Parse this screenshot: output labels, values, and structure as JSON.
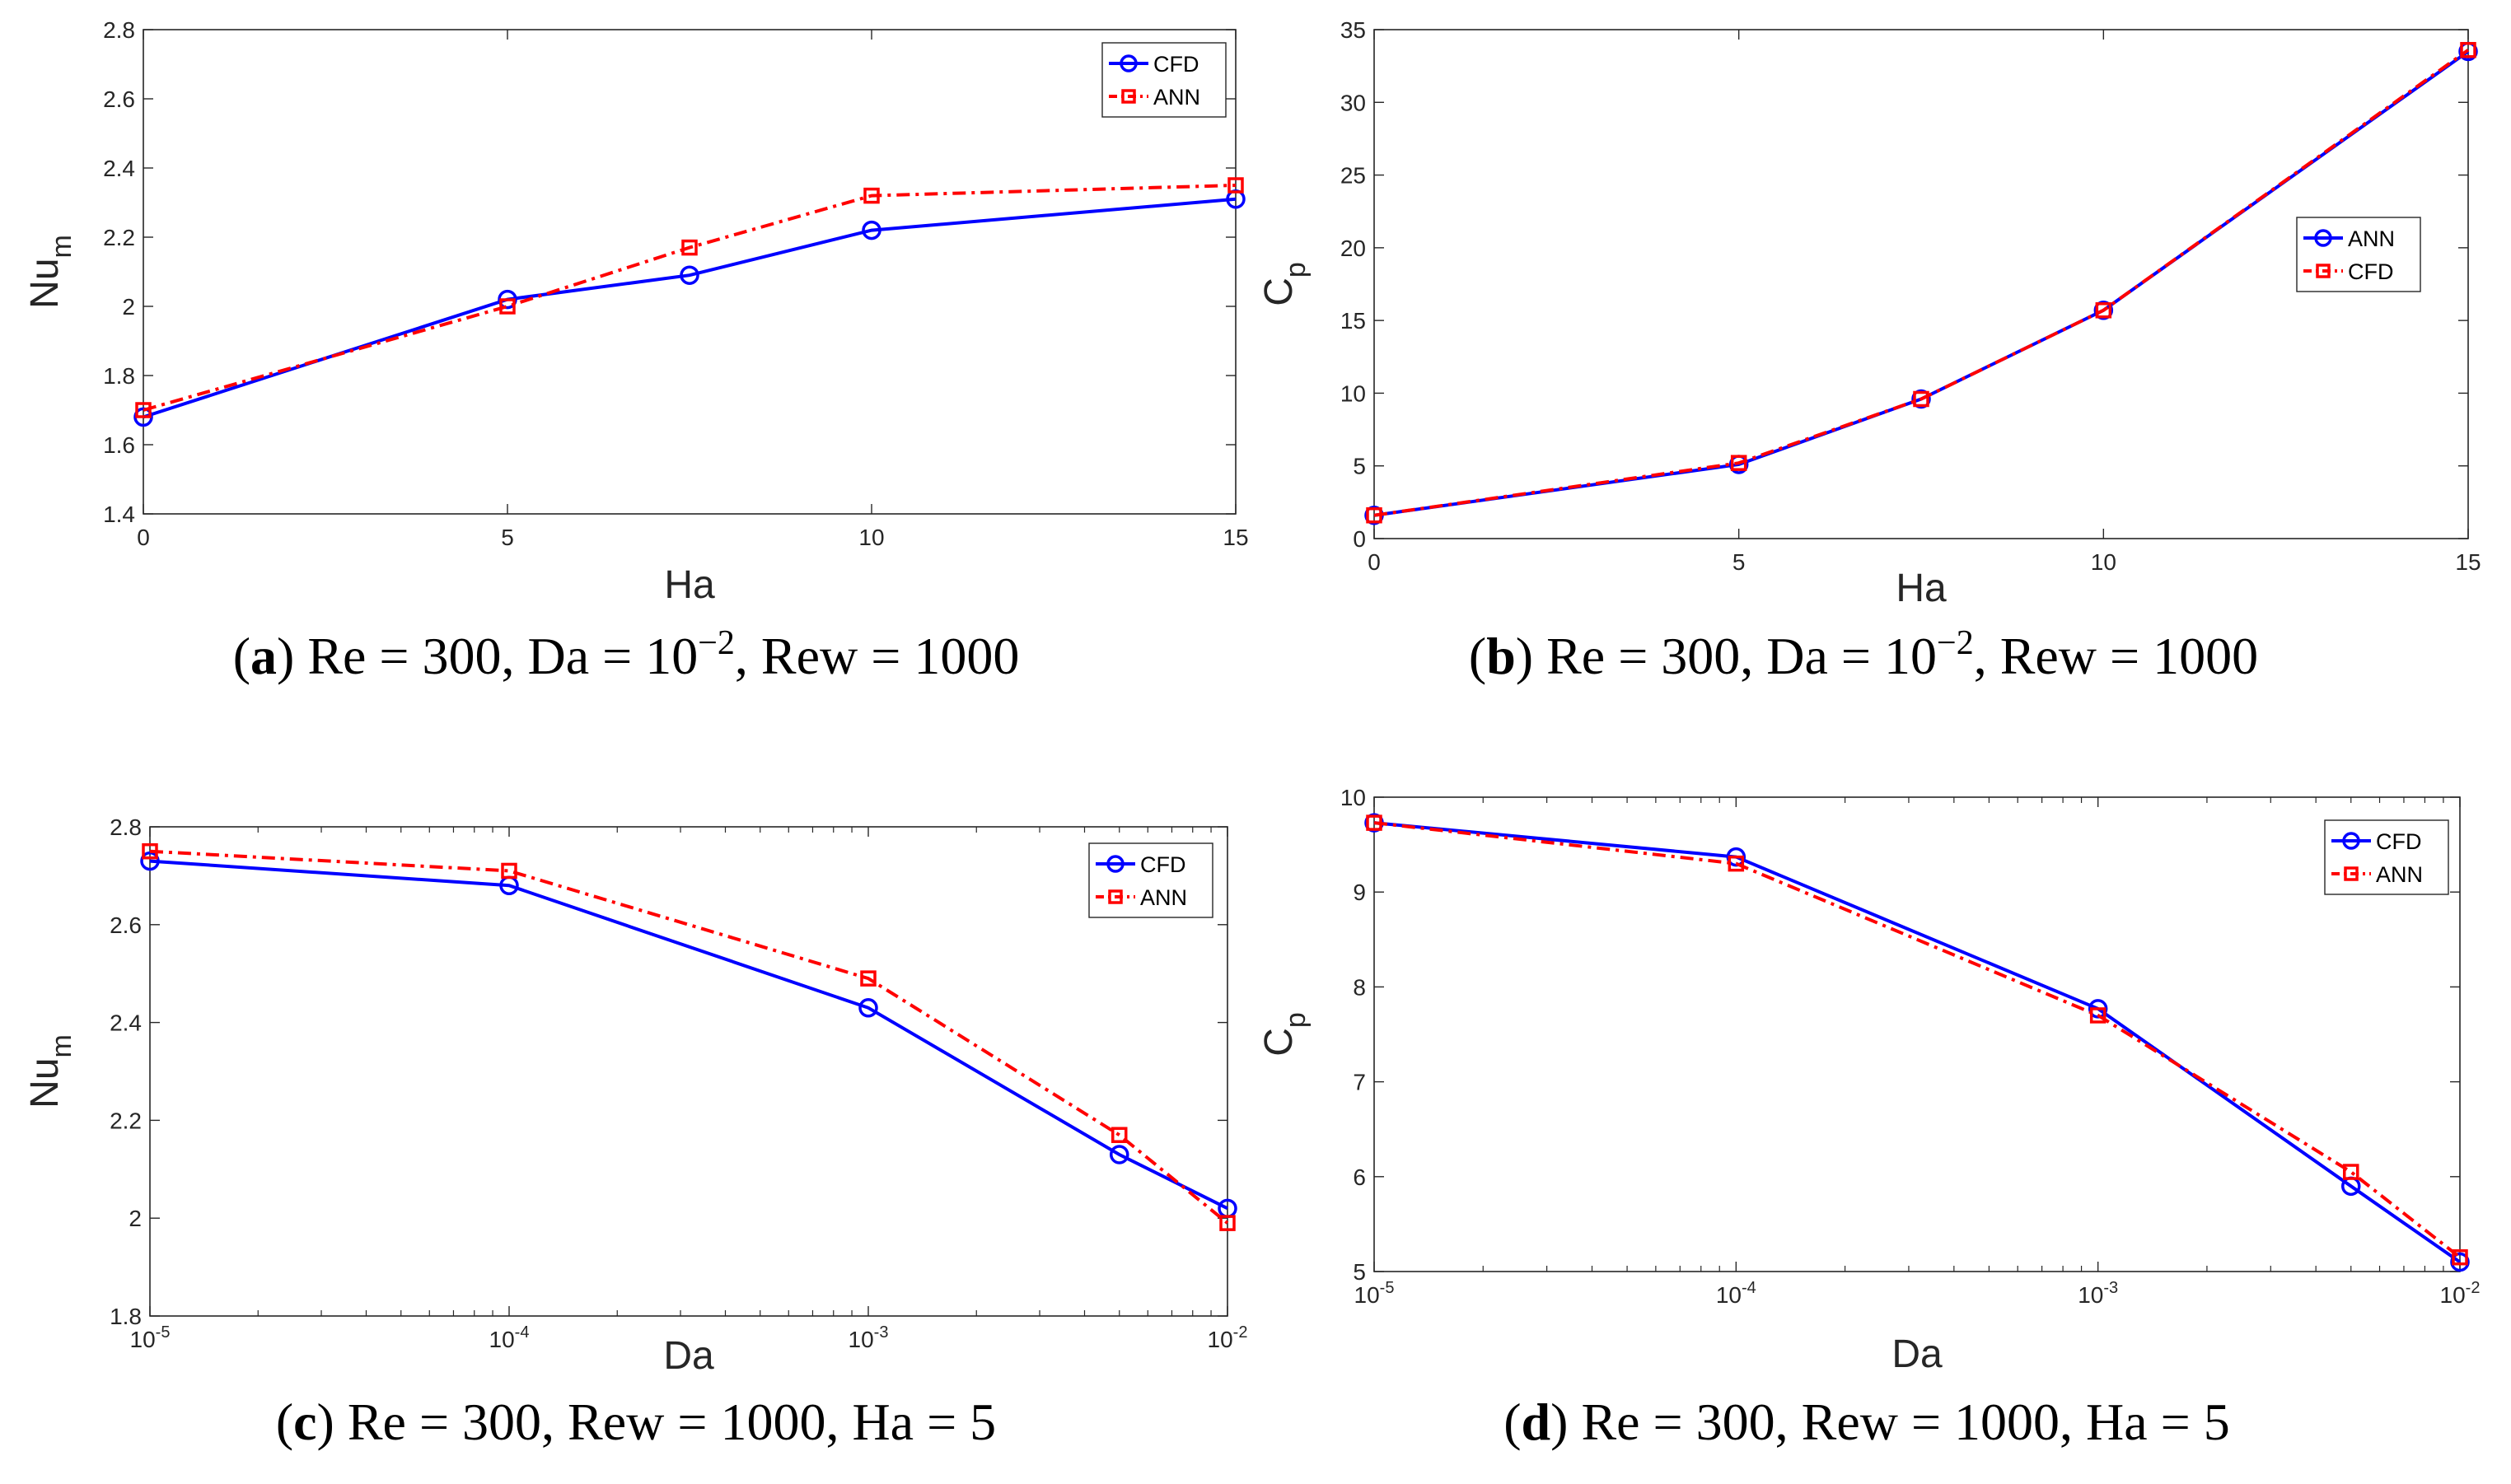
{
  "chart_data": [
    {
      "panel": "a",
      "type": "line",
      "x_scale": "linear",
      "x": [
        0,
        5,
        7.5,
        10,
        15
      ],
      "xlim": [
        0,
        15
      ],
      "ylim": [
        1.4,
        2.8
      ],
      "xticks": [
        0,
        5,
        10,
        15
      ],
      "xtick_labels": [
        "0",
        "5",
        "10",
        "15"
      ],
      "yticks": [
        1.4,
        1.6,
        1.8,
        2,
        2.2,
        2.4,
        2.6,
        2.8
      ],
      "ytick_labels": [
        "1.4",
        "1.6",
        "1.8",
        "2",
        "2.2",
        "2.4",
        "2.6",
        "2.8"
      ],
      "xlabel": "Ha",
      "ylabel": "Nu",
      "ylabel_sub": "m",
      "legend_position": "top-right",
      "series": [
        {
          "name": "CFD",
          "color": "#0000ff",
          "style": "solid",
          "marker": "circle",
          "values": [
            1.68,
            2.02,
            2.09,
            2.22,
            2.31
          ]
        },
        {
          "name": "ANN",
          "color": "#ff0000",
          "style": "dashdot",
          "marker": "square",
          "values": [
            1.7,
            2.0,
            2.17,
            2.32,
            2.35
          ]
        }
      ],
      "caption": {
        "label": "(a)",
        "prefix": " Re = 300, Da = 10",
        "sup": "−2",
        "suffix": ", Rew = 1000"
      }
    },
    {
      "panel": "b",
      "type": "line",
      "x_scale": "linear",
      "x": [
        0,
        5,
        7.5,
        10,
        15
      ],
      "xlim": [
        0,
        15
      ],
      "ylim": [
        0,
        35
      ],
      "xticks": [
        0,
        5,
        10,
        15
      ],
      "xtick_labels": [
        "0",
        "5",
        "10",
        "15"
      ],
      "yticks": [
        0,
        5,
        10,
        15,
        20,
        25,
        30,
        35
      ],
      "ytick_labels": [
        "0",
        "5",
        "10",
        "15",
        "20",
        "25",
        "30",
        "35"
      ],
      "xlabel": "Ha",
      "ylabel": "C",
      "ylabel_sub": "p",
      "legend_position": "center-right",
      "series": [
        {
          "name": "ANN",
          "color": "#0000ff",
          "style": "solid",
          "marker": "circle",
          "values": [
            1.6,
            5.1,
            9.6,
            15.7,
            33.5
          ]
        },
        {
          "name": "CFD",
          "color": "#ff0000",
          "style": "dashdot",
          "marker": "square",
          "values": [
            1.6,
            5.2,
            9.6,
            15.7,
            33.6
          ]
        }
      ],
      "caption": {
        "label": "(b)",
        "prefix": " Re = 300, Da = 10",
        "sup": "−2",
        "suffix": ", Rew = 1000"
      }
    },
    {
      "panel": "c",
      "type": "line",
      "x_scale": "log",
      "x": [
        1e-05,
        0.0001,
        0.001,
        0.005,
        0.01
      ],
      "xlim": [
        1e-05,
        0.01
      ],
      "ylim": [
        1.8,
        2.8
      ],
      "xticks": [
        1e-05,
        0.0001,
        0.001,
        0.01
      ],
      "xtick_labels": [
        "-5",
        "-4",
        "-3",
        "-2"
      ],
      "xtick_base": "10",
      "yticks": [
        1.8,
        2,
        2.2,
        2.4,
        2.6,
        2.8
      ],
      "ytick_labels": [
        "1.8",
        "2",
        "2.2",
        "2.4",
        "2.6",
        "2.8"
      ],
      "xlabel": "Da",
      "ylabel": "Nu",
      "ylabel_sub": "m",
      "legend_position": "top-right",
      "series": [
        {
          "name": "CFD",
          "color": "#0000ff",
          "style": "solid",
          "marker": "circle",
          "values": [
            2.73,
            2.68,
            2.43,
            2.13,
            2.02
          ]
        },
        {
          "name": "ANN",
          "color": "#ff0000",
          "style": "dashdot",
          "marker": "square",
          "values": [
            2.75,
            2.71,
            2.49,
            2.17,
            1.99
          ]
        }
      ],
      "caption": {
        "label": "(c)",
        "prefix": " Re = 300, Rew = 1000, Ha = 5",
        "sup": "",
        "suffix": ""
      }
    },
    {
      "panel": "d",
      "type": "line",
      "x_scale": "log",
      "x": [
        1e-05,
        0.0001,
        0.001,
        0.005,
        0.01
      ],
      "xlim": [
        1e-05,
        0.01
      ],
      "ylim": [
        5,
        10
      ],
      "xticks": [
        1e-05,
        0.0001,
        0.001,
        0.01
      ],
      "xtick_labels": [
        "-5",
        "-4",
        "-3",
        "-2"
      ],
      "xtick_base": "10",
      "yticks": [
        5,
        6,
        7,
        8,
        9,
        10
      ],
      "ytick_labels": [
        "5",
        "6",
        "7",
        "8",
        "9",
        "10"
      ],
      "xlabel": "Da",
      "ylabel": "C",
      "ylabel_sub": "p",
      "legend_position": "top-right",
      "series": [
        {
          "name": "CFD",
          "color": "#0000ff",
          "style": "solid",
          "marker": "circle",
          "values": [
            9.73,
            9.37,
            7.77,
            5.9,
            5.1
          ]
        },
        {
          "name": "ANN",
          "color": "#ff0000",
          "style": "dashdot",
          "marker": "square",
          "values": [
            9.73,
            9.3,
            7.7,
            6.05,
            5.15
          ]
        }
      ],
      "caption": {
        "label": "(d)",
        "prefix": " Re = 300, Rew = 1000, Ha = 5",
        "sup": "",
        "suffix": ""
      }
    }
  ]
}
